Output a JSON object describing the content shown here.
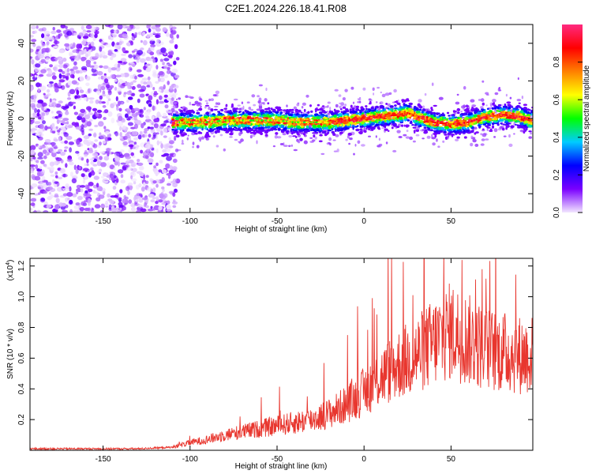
{
  "title": "C2E1.2024.226.18.41.R08",
  "chart_data": [
    {
      "type": "heatmap",
      "xlabel": "Height of straight line (km)",
      "ylabel": "Frequency (Hz)",
      "xlim": [
        -192,
        97
      ],
      "ylim": [
        -50,
        50
      ],
      "xticks": [
        -150,
        -100,
        -50,
        0,
        50
      ],
      "yticks": [
        -40,
        -20,
        0,
        20,
        40
      ],
      "noise_region": {
        "x_range": [
          -192,
          -107
        ],
        "y_range": [
          -50,
          50
        ]
      },
      "ridge": {
        "x": [
          -110,
          -100,
          -90,
          -80,
          -70,
          -60,
          -50,
          -40,
          -30,
          -20,
          -10,
          0,
          10,
          20,
          25,
          30,
          40,
          50,
          60,
          70,
          80,
          90,
          95
        ],
        "y": [
          -2,
          -2,
          -2,
          -1,
          -1,
          -1,
          -1,
          -2,
          -2,
          -2,
          -1,
          0,
          1,
          2,
          3,
          1,
          -2,
          -3,
          -2,
          1,
          2,
          1,
          -1
        ]
      },
      "colorbar": {
        "label": "Normalized spectral amplitude",
        "range": [
          0.0,
          1.0
        ],
        "ticks": [
          0.0,
          0.2,
          0.4,
          0.6,
          0.8
        ],
        "tick_labels": [
          "0.0",
          "0.2",
          "0.4",
          "0.6",
          "0.8"
        ],
        "colors": [
          "#f2e6ff",
          "#7a00ff",
          "#0000ff",
          "#00ccff",
          "#00ff00",
          "#ffff00",
          "#ff8000",
          "#ff0000",
          "#ff2a80"
        ]
      }
    },
    {
      "type": "line",
      "xlabel": "Height of straight line (km)",
      "ylabel": "SNR (10 * v/v)",
      "exponent_label": "(x10",
      "exponent_value": "4",
      "exponent_close": ")",
      "xlim": [
        -192,
        97
      ],
      "ylim": [
        0,
        1.25
      ],
      "xticks": [
        -150,
        -100,
        -50,
        0,
        50
      ],
      "yticks": [
        0.2,
        0.4,
        0.6,
        0.8,
        1.0,
        1.2
      ],
      "ytick_labels": [
        "0.2",
        "0.4",
        "0.6",
        "0.8",
        "1.0",
        "1.2"
      ],
      "color": "#e8362e",
      "series": [
        {
          "x": [
            -192,
            -170,
            -150,
            -130,
            -110,
            -100,
            -90,
            -80,
            -70,
            -60,
            -50,
            -40,
            -30,
            -20,
            -10,
            0,
            10,
            20,
            30,
            40,
            50,
            60,
            70,
            80,
            90,
            97
          ],
          "y": [
            0.01,
            0.01,
            0.01,
            0.01,
            0.02,
            0.05,
            0.07,
            0.1,
            0.12,
            0.14,
            0.16,
            0.18,
            0.2,
            0.24,
            0.3,
            0.38,
            0.48,
            0.56,
            0.62,
            0.7,
            0.78,
            0.72,
            0.66,
            0.64,
            0.62,
            0.62
          ]
        }
      ]
    }
  ]
}
